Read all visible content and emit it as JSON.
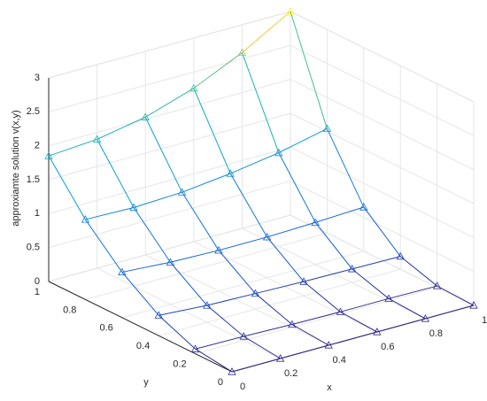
{
  "chart_data": {
    "type": "surface",
    "zlabel": "approxiamte solution v(x,y)",
    "xlabel": "x",
    "ylabel": "y",
    "x": [
      0,
      0.2,
      0.4,
      0.6,
      0.8,
      1
    ],
    "y": [
      0,
      0.2,
      0.4,
      0.6,
      0.8,
      1
    ],
    "z": [
      [
        0,
        0,
        0,
        0,
        0,
        0
      ],
      [
        0.07,
        0.06,
        0.04,
        0.03,
        0.03,
        0.02
      ],
      [
        0.3,
        0.25,
        0.23,
        0.21,
        0.2,
        0.19
      ],
      [
        0.67,
        0.62,
        0.6,
        0.6,
        0.62,
        0.65
      ],
      [
        1.18,
        1.16,
        1.19,
        1.27,
        1.38,
        1.54
      ],
      [
        1.85,
        1.9,
        2.03,
        2.26,
        2.59,
        3
      ]
    ],
    "xlim": [
      0,
      1
    ],
    "ylim": [
      0,
      1
    ],
    "zlim": [
      0,
      3
    ],
    "xticks": [
      0,
      0.2,
      0.4,
      0.6,
      0.8,
      1
    ],
    "yticks": [
      0,
      0.2,
      0.4,
      0.6,
      0.8,
      1
    ],
    "zticks": [
      0,
      0.5,
      1,
      1.5,
      2,
      2.5,
      3
    ],
    "grid": true,
    "colormap": "parula",
    "marker": "triangle"
  }
}
